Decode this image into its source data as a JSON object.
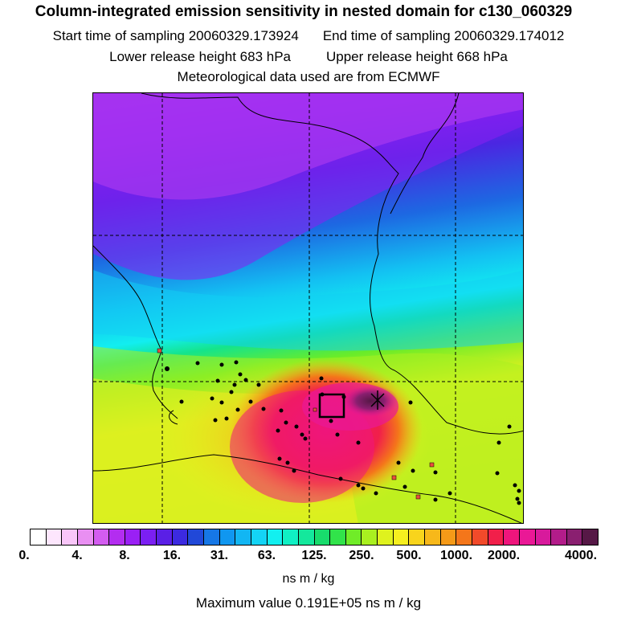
{
  "header": {
    "title": "Column-integrated emission sensitivity in nested domain for c130_060329",
    "start_label": "Start time of sampling 20060329.173924",
    "end_label": "End time of sampling 20060329.174012",
    "lower_label": "Lower release height  683 hPa",
    "upper_label": "Upper release height  668 hPa",
    "met_label": "Meteorological data used are from ECMWF"
  },
  "legend": {
    "tick_labels": [
      "0.",
      "4.",
      "8.",
      "16.",
      "31.",
      "63.",
      "125.",
      "250.",
      "500.",
      "1000.",
      "2000.",
      "4000."
    ],
    "colors": [
      "#ffffff",
      "#fde6fd",
      "#f9c6f9",
      "#e98ff2",
      "#d35cf0",
      "#b32df0",
      "#9a20f5",
      "#7b1ff2",
      "#5a1fe6",
      "#3c2ae0",
      "#2148d8",
      "#1677e6",
      "#1097f0",
      "#12b6f3",
      "#14d4f5",
      "#12f0f0",
      "#10f0c4",
      "#14e89c",
      "#18dc6c",
      "#31e34a",
      "#70ec28",
      "#a9f020",
      "#dff21e",
      "#f6ef1f",
      "#f8d41c",
      "#f7b81a",
      "#f59a18",
      "#f4761a",
      "#f24a2a",
      "#f11f4a",
      "#ef157c",
      "#ea1896",
      "#d81a9c",
      "#b31c8a",
      "#8a1f70",
      "#561846"
    ],
    "units": "ns m / kg",
    "max_value": "Maximum value  0.191E+05 ns m / kg"
  },
  "map": {
    "icons": [
      "release-box-icon",
      "release-star-icon"
    ]
  }
}
